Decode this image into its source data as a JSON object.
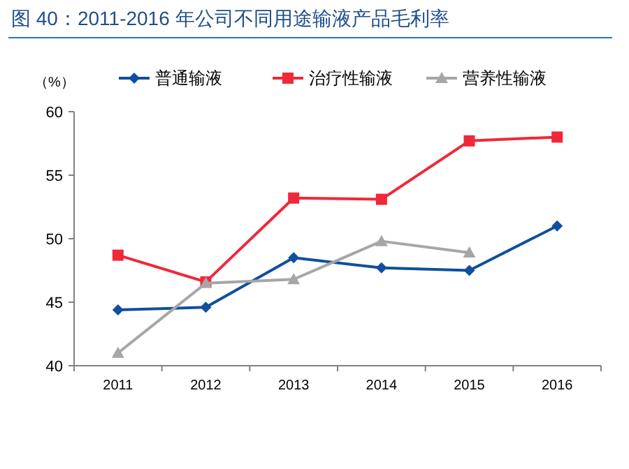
{
  "chart_data": {
    "type": "line",
    "title": "图 40：2011-2016 年公司不同用途输液产品毛利率",
    "ylabel": "（%）",
    "categories": [
      "2011",
      "2012",
      "2013",
      "2014",
      "2015",
      "2016"
    ],
    "series": [
      {
        "name": "普通输液",
        "color": "#0f4f9e",
        "marker": "diamond",
        "values": [
          44.4,
          44.6,
          48.5,
          47.7,
          47.5,
          51.0
        ]
      },
      {
        "name": "治疗性输液",
        "color": "#f0283a",
        "marker": "square",
        "values": [
          48.7,
          46.6,
          53.2,
          53.1,
          57.7,
          58.0
        ]
      },
      {
        "name": "营养性输液",
        "color": "#a6a6a6",
        "marker": "triangle",
        "values": [
          41.0,
          46.5,
          46.8,
          49.8,
          48.9,
          null
        ]
      }
    ],
    "ylim": [
      40,
      60
    ],
    "yticks": [
      40,
      45,
      50,
      55,
      60
    ],
    "grid": false,
    "legend": "top",
    "line_style": "solid"
  }
}
